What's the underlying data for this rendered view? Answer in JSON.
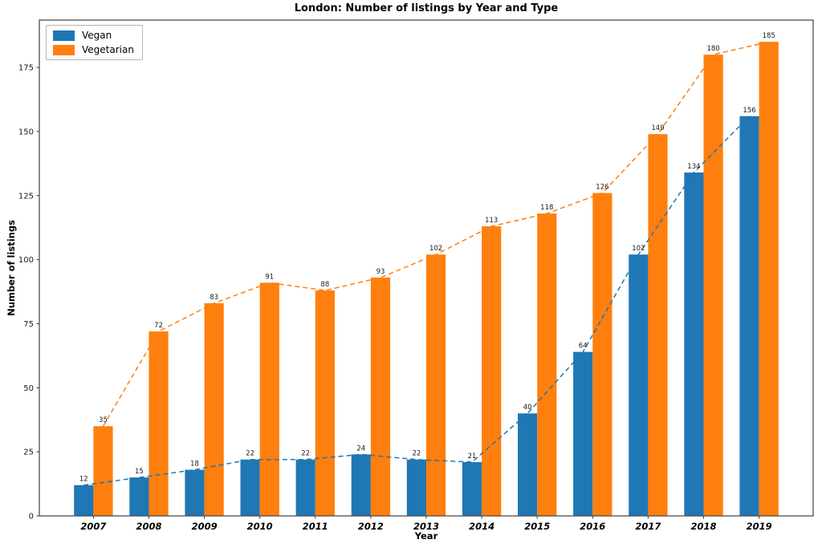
{
  "chart_data": {
    "type": "bar",
    "title": "London: Number of listings by Year and Type",
    "xlabel": "Year",
    "ylabel": "Number of listings",
    "categories": [
      "2007",
      "2008",
      "2009",
      "2010",
      "2011",
      "2012",
      "2013",
      "2014",
      "2015",
      "2016",
      "2017",
      "2018",
      "2019"
    ],
    "series": [
      {
        "name": "Vegan",
        "color": "#1f77b4",
        "values": [
          12,
          15,
          18,
          22,
          22,
          24,
          22,
          21,
          40,
          64,
          102,
          134,
          156
        ]
      },
      {
        "name": "Vegetarian",
        "color": "#ff7f0e",
        "values": [
          35,
          72,
          83,
          91,
          88,
          93,
          102,
          113,
          118,
          126,
          149,
          180,
          185
        ]
      }
    ],
    "yticks": [
      0,
      25,
      50,
      75,
      100,
      125,
      150,
      175
    ],
    "ylim": [
      0,
      193.5
    ],
    "bar_width": 0.35,
    "grid": false,
    "legend_position": "upper left",
    "annotations": "value labels above each bar; dashed trend line of each series connecting bar tops"
  }
}
